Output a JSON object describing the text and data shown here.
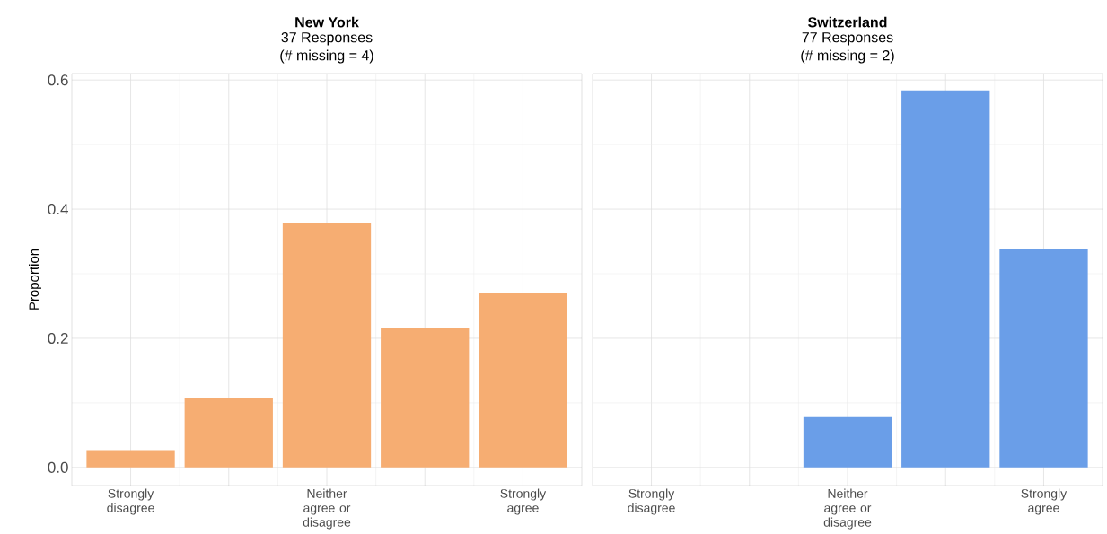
{
  "chart_data": [
    {
      "type": "bar",
      "title": "New York",
      "subtitle": "37 Responses",
      "annotations": [
        "(# missing = 4)"
      ],
      "ylabel": "Proportion",
      "categories": [
        "Strongly disagree",
        null,
        "Neither agree or disagree",
        null,
        "Strongly agree"
      ],
      "values": [
        0.027,
        0.108,
        0.378,
        0.216,
        0.27
      ],
      "color": "#f6ad72",
      "ylim": [
        -0.028,
        0.61
      ],
      "yticks": [
        {
          "value": 0,
          "label": "0.0"
        },
        0.2,
        0.4,
        0.6
      ],
      "grid": true
    },
    {
      "type": "bar",
      "title": "Switzerland",
      "subtitle": "77 Responses",
      "annotations": [
        "(# missing = 2)"
      ],
      "categories": [
        "Strongly disagree",
        null,
        "Neither agree or disagree",
        null,
        "Strongly agree"
      ],
      "values": [
        null,
        null,
        0.078,
        0.584,
        0.338
      ],
      "color": "#6a9ee8",
      "ylim": [
        -0.028,
        0.61
      ],
      "yticks": [
        0,
        0.2,
        0.4,
        0.6
      ],
      "grid": true,
      "tick_labels": "x"
    }
  ]
}
